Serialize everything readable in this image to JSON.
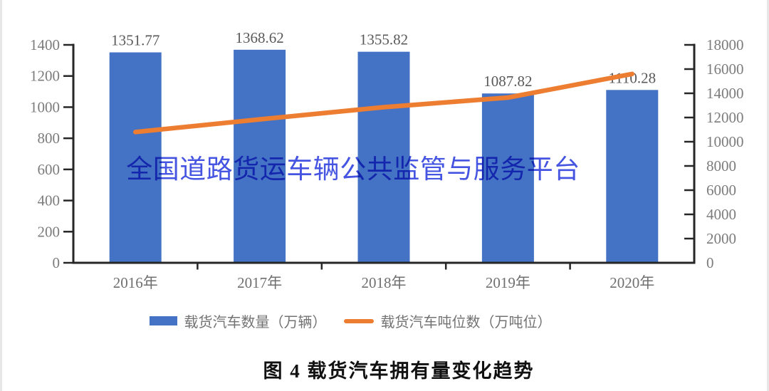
{
  "chart_data": {
    "type": "combo-bar-line",
    "categories": [
      "2016年",
      "2017年",
      "2018年",
      "2019年",
      "2020年"
    ],
    "series": [
      {
        "name": "载货汽车数量（万辆）",
        "type": "bar",
        "axis": "left",
        "values": [
          1351.77,
          1368.62,
          1355.82,
          1087.82,
          1110.28
        ],
        "data_labels": [
          "1351.77",
          "1368.62",
          "1355.82",
          "1087.82",
          "1110.28"
        ],
        "color": "#4472C4"
      },
      {
        "name": "载货汽车吨位数（万吨位）",
        "type": "line",
        "axis": "right",
        "values": [
          10800,
          11850,
          12850,
          13650,
          15600
        ],
        "values_note": "estimated from pixel positions; line has no data labels",
        "color": "#ED7D31"
      }
    ],
    "left_axis": {
      "min": 0,
      "max": 1400,
      "step": 200,
      "ticks": [
        0,
        200,
        400,
        600,
        800,
        1000,
        1200,
        1400
      ]
    },
    "right_axis": {
      "min": 0,
      "max": 18000,
      "step": 2000,
      "ticks": [
        0,
        2000,
        4000,
        6000,
        8000,
        10000,
        12000,
        14000,
        16000,
        18000
      ]
    },
    "grid": false,
    "legend_position": "bottom",
    "title": "图 4  载货汽车拥有量变化趋势"
  },
  "legend": {
    "bar_label": "载货汽车数量（万辆）",
    "line_label": "载货汽车吨位数（万吨位）"
  },
  "watermark": {
    "text": "全国道路货运车辆公共监管与服务平台",
    "color": "#3B4BE0"
  },
  "caption": "图 4  载货汽车拥有量变化趋势",
  "colors": {
    "bar": "#4472C4",
    "line": "#ED7D31",
    "axis": "#262626",
    "tick_label": "#7C7C7C",
    "data_label": "#595959",
    "watermark": "#3B4BE0"
  }
}
